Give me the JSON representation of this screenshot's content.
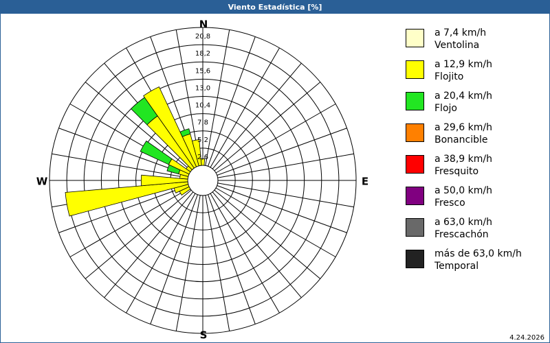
{
  "chart_data": {
    "type": "windrose",
    "title": "Viento Estadística [%]",
    "directions": {
      "north": "N",
      "east": "E",
      "south": "S",
      "west": "W"
    },
    "date": "4.24.2026",
    "categories": [
      null,
      null,
      null,
      null,
      null,
      null,
      null,
      null,
      null,
      null,
      null,
      null,
      null,
      null,
      null,
      null,
      null,
      null,
      null,
      null,
      null,
      null,
      null,
      null,
      null,
      null,
      null,
      null,
      null,
      null,
      null,
      null,
      null,
      null,
      null,
      null
    ],
    "ylim": [
      0,
      20.8
    ],
    "yticks": [
      {
        "value": 2.6,
        "label": "2,6"
      },
      {
        "value": 5.2,
        "label": "5,2"
      },
      {
        "value": 7.8,
        "label": "7,8"
      },
      {
        "value": 10.4,
        "label": "10,4"
      },
      {
        "value": 13.0,
        "label": "13,0"
      },
      {
        "value": 15.6,
        "label": "15,6"
      },
      {
        "value": 18.2,
        "label": "18,2"
      },
      {
        "value": 20.8,
        "label": "20,8"
      }
    ],
    "series": [
      {
        "name": "a 7,4 km/h",
        "description": "Ventolina",
        "color": "#ffffc8",
        "values": [
          0,
          0,
          0,
          0,
          0,
          0,
          0,
          0,
          0,
          0,
          0,
          0,
          0,
          0,
          0,
          0,
          0,
          0,
          0,
          0,
          0,
          0,
          0,
          0,
          0,
          0,
          0,
          0,
          0,
          0,
          0,
          0,
          0,
          0,
          0,
          0
        ]
      },
      {
        "name": "a 12,9 km/h",
        "description": "Flojito",
        "color": "#ffff00",
        "values": [
          1.0,
          0,
          0,
          0,
          0,
          0,
          0,
          0,
          0,
          0,
          0,
          0,
          0,
          0,
          0,
          0,
          0,
          0,
          0,
          0,
          0,
          0,
          0,
          0,
          1.6,
          2.2,
          18.5,
          7.0,
          1.2,
          1.5,
          3.4,
          0.8,
          9.6,
          13.3,
          5.0,
          3.9
        ]
      },
      {
        "name": "a 20,4 km/h",
        "description": "Flojo",
        "color": "#22e622",
        "values": [
          0,
          0,
          0,
          0,
          0,
          0,
          0,
          0,
          0,
          0,
          0,
          0,
          0,
          0,
          0,
          0,
          0,
          0,
          0,
          0,
          0,
          0,
          0,
          0,
          0,
          0,
          0,
          0,
          0,
          1.8,
          4.7,
          0,
          3.4,
          0,
          0.8,
          0
        ]
      },
      {
        "name": "a 29,6 km/h",
        "description": "Bonancible",
        "color": "#ff8000",
        "values": [
          0,
          0,
          0,
          0,
          0,
          0,
          0,
          0,
          0,
          0,
          0,
          0,
          0,
          0,
          0,
          0,
          0,
          0,
          0,
          0,
          0,
          0,
          0,
          0,
          0,
          0,
          0,
          0,
          0,
          0,
          0,
          0,
          0,
          0,
          0,
          0
        ]
      },
      {
        "name": "a 38,9 km/h",
        "description": "Fresquito",
        "color": "#ff0000",
        "values": [
          0,
          0,
          0,
          0,
          0,
          0,
          0,
          0,
          0,
          0,
          0,
          0,
          0,
          0,
          0,
          0,
          0,
          0,
          0,
          0,
          0,
          0,
          0,
          0,
          0,
          0,
          0,
          0,
          0,
          0,
          0,
          0,
          0,
          0,
          0,
          0
        ]
      },
      {
        "name": "a 50,0 km/h",
        "description": "Fresco",
        "color": "#800080",
        "values": [
          0,
          0,
          0,
          0,
          0,
          0,
          0,
          0,
          0,
          0,
          0,
          0,
          0,
          0,
          0,
          0,
          0,
          0,
          0,
          0,
          0,
          0,
          0,
          0,
          0,
          0,
          0,
          0,
          0,
          0,
          0,
          0,
          0,
          0,
          0,
          0
        ]
      },
      {
        "name": "a 63,0 km/h",
        "description": "Frescachón",
        "color": "#696969",
        "values": [
          0,
          0,
          0,
          0,
          0,
          0,
          0,
          0,
          0,
          0,
          0,
          0,
          0,
          0,
          0,
          0,
          0,
          0,
          0,
          0,
          0,
          0,
          0,
          0,
          0,
          0,
          0,
          0,
          0,
          0,
          0,
          0,
          0,
          0,
          0,
          0
        ]
      },
      {
        "name": "más de 63,0 km/h",
        "description": "Temporal",
        "color": "#222222",
        "values": [
          0,
          0,
          0,
          0,
          0,
          0,
          0,
          0,
          0,
          0,
          0,
          0,
          0,
          0,
          0,
          0,
          0,
          0,
          0,
          0,
          0,
          0,
          0,
          0,
          0,
          0,
          0,
          0,
          0,
          0,
          0,
          0,
          0,
          0,
          0,
          0
        ]
      }
    ]
  }
}
